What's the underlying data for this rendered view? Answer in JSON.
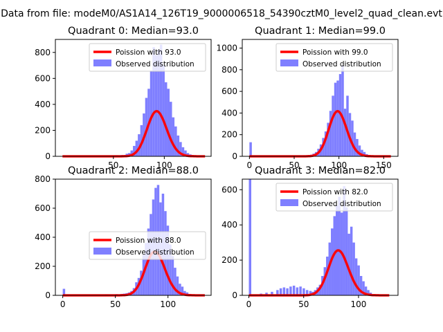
{
  "figure_title": "Data from file: modeM0/AS1A14_126T19_9000006518_54390cztM0_level2_quad_clean.evt",
  "colors": {
    "poisson_line": "#ff0000",
    "observed_bars": "#7f7fff",
    "axis": "#000000",
    "background": "#ffffff"
  },
  "chart_data": [
    {
      "type": "bar",
      "title": "Quadrant 0: Median=93.0",
      "xlabel": "",
      "ylabel": "",
      "xlim": [
        -7,
        146
      ],
      "ylim": [
        0,
        900
      ],
      "xticks": [
        50,
        100
      ],
      "yticks": [
        0,
        200,
        400,
        600,
        800
      ],
      "legend": [
        "Poission with 93.0",
        "Observed distribution"
      ],
      "legend_loc": "upper right",
      "poisson_mean": 93.0,
      "poisson_scale": 8400,
      "poisson_x_range": [
        0,
        140
      ],
      "bin_width": 2.4,
      "bins": [
        [
          50,
          5
        ],
        [
          52.4,
          8
        ],
        [
          54.8,
          5
        ],
        [
          57.2,
          10
        ],
        [
          59.6,
          8
        ],
        [
          62,
          20
        ],
        [
          64.4,
          25
        ],
        [
          66.8,
          45
        ],
        [
          69.2,
          80
        ],
        [
          71.6,
          120
        ],
        [
          74,
          170
        ],
        [
          76.4,
          240
        ],
        [
          78.8,
          330
        ],
        [
          81.2,
          450
        ],
        [
          83.6,
          520
        ],
        [
          86,
          660
        ],
        [
          88.4,
          840
        ],
        [
          90.8,
          780
        ],
        [
          93.2,
          820
        ],
        [
          95.6,
          860
        ],
        [
          98,
          700
        ],
        [
          100.4,
          570
        ],
        [
          102.8,
          520
        ],
        [
          105.2,
          420
        ],
        [
          107.6,
          300
        ],
        [
          110,
          230
        ],
        [
          112.4,
          160
        ],
        [
          114.8,
          110
        ],
        [
          117.2,
          70
        ],
        [
          119.6,
          45
        ],
        [
          122,
          25
        ],
        [
          124.4,
          15
        ],
        [
          126.8,
          10
        ],
        [
          129.2,
          5
        ]
      ]
    },
    {
      "type": "bar",
      "title": "Quadrant 1: Median=99.0",
      "xlabel": "",
      "ylabel": "",
      "xlim": [
        -8,
        166
      ],
      "ylim": [
        0,
        1080
      ],
      "xticks": [
        0,
        50,
        100,
        150
      ],
      "yticks": [
        0,
        200,
        400,
        600,
        800,
        1000
      ],
      "legend": [
        "Poission with 99.0",
        "Observed distribution"
      ],
      "legend_loc": "upper right",
      "poisson_mean": 99.0,
      "poisson_scale": 10400,
      "poisson_x_range": [
        0,
        158
      ],
      "bin_width": 2.7,
      "bins": [
        [
          0,
          130
        ],
        [
          55,
          5
        ],
        [
          60,
          8
        ],
        [
          65,
          10
        ],
        [
          67.7,
          15
        ],
        [
          70.4,
          25
        ],
        [
          73.1,
          40
        ],
        [
          75.8,
          70
        ],
        [
          78.5,
          110
        ],
        [
          81.2,
          170
        ],
        [
          83.9,
          230
        ],
        [
          86.6,
          310
        ],
        [
          89.3,
          420
        ],
        [
          92,
          560
        ],
        [
          94.7,
          680
        ],
        [
          97.4,
          700
        ],
        [
          100.1,
          760
        ],
        [
          102.8,
          840
        ],
        [
          105.5,
          440
        ],
        [
          108.2,
          560
        ],
        [
          110.9,
          400
        ],
        [
          113.6,
          330
        ],
        [
          116.3,
          220
        ],
        [
          119,
          160
        ],
        [
          121.7,
          100
        ],
        [
          124.4,
          60
        ],
        [
          127.1,
          40
        ],
        [
          129.8,
          20
        ],
        [
          132.5,
          10
        ]
      ]
    },
    {
      "type": "bar",
      "title": "Quadrant 2: Median=88.0",
      "xlabel": "",
      "ylabel": "",
      "xlim": [
        -7,
        141
      ],
      "ylim": [
        0,
        800
      ],
      "xticks": [
        0,
        50,
        100
      ],
      "yticks": [
        0,
        200,
        400,
        600,
        800
      ],
      "legend": [
        "Poission with 88.0",
        "Observed distribution"
      ],
      "legend_loc": "center right",
      "poisson_mean": 88.0,
      "poisson_scale": 7100,
      "poisson_x_range": [
        0,
        135
      ],
      "bin_width": 2.3,
      "bins": [
        [
          0,
          45
        ],
        [
          40,
          5
        ],
        [
          45,
          5
        ],
        [
          50,
          8
        ],
        [
          55,
          10
        ],
        [
          57.3,
          12
        ],
        [
          59.6,
          15
        ],
        [
          61.9,
          20
        ],
        [
          64.2,
          30
        ],
        [
          66.5,
          50
        ],
        [
          68.8,
          90
        ],
        [
          71.1,
          120
        ],
        [
          73.4,
          170
        ],
        [
          75.7,
          280
        ],
        [
          78,
          360
        ],
        [
          80.3,
          460
        ],
        [
          82.6,
          560
        ],
        [
          84.9,
          660
        ],
        [
          87.2,
          740
        ],
        [
          89.5,
          760
        ],
        [
          91.8,
          640
        ],
        [
          94.1,
          700
        ],
        [
          96.4,
          580
        ],
        [
          98.7,
          480
        ],
        [
          101,
          350
        ],
        [
          103.3,
          270
        ],
        [
          105.6,
          190
        ],
        [
          107.9,
          130
        ],
        [
          110.2,
          80
        ],
        [
          112.5,
          60
        ],
        [
          114.8,
          30
        ],
        [
          117.1,
          20
        ],
        [
          119.4,
          10
        ]
      ]
    },
    {
      "type": "bar",
      "title": "Quadrant 3: Median=82.0",
      "xlabel": "",
      "ylabel": "",
      "xlim": [
        -6,
        136
      ],
      "ylim": [
        0,
        660
      ],
      "xticks": [
        0,
        50,
        100
      ],
      "yticks": [
        0,
        200,
        400,
        600
      ],
      "legend": [
        "Poission with 82.0",
        "Observed distribution"
      ],
      "legend_loc": "upper right",
      "poisson_mean": 82.0,
      "poisson_scale": 5800,
      "poisson_x_range": [
        0,
        128
      ],
      "bin_width": 2.2,
      "bins": [
        [
          0,
          660
        ],
        [
          10,
          10
        ],
        [
          15,
          15
        ],
        [
          20,
          20
        ],
        [
          25,
          30
        ],
        [
          28,
          40
        ],
        [
          31,
          45
        ],
        [
          34,
          40
        ],
        [
          37,
          50
        ],
        [
          40,
          55
        ],
        [
          43,
          45
        ],
        [
          46,
          50
        ],
        [
          49,
          40
        ],
        [
          52,
          30
        ],
        [
          55,
          25
        ],
        [
          57.2,
          20
        ],
        [
          59.4,
          30
        ],
        [
          61.6,
          45
        ],
        [
          63.8,
          60
        ],
        [
          66,
          110
        ],
        [
          68.2,
          160
        ],
        [
          70.4,
          220
        ],
        [
          72.6,
          300
        ],
        [
          74.8,
          380
        ],
        [
          77,
          450
        ],
        [
          79.2,
          510
        ],
        [
          81.4,
          560
        ],
        [
          83.6,
          470
        ],
        [
          85.8,
          620
        ],
        [
          88,
          500
        ],
        [
          90.2,
          350
        ],
        [
          92.4,
          390
        ],
        [
          94.6,
          300
        ],
        [
          96.8,
          210
        ],
        [
          99,
          170
        ],
        [
          101.2,
          110
        ],
        [
          103.4,
          80
        ],
        [
          105.6,
          50
        ],
        [
          107.8,
          30
        ],
        [
          110,
          15
        ]
      ]
    }
  ]
}
